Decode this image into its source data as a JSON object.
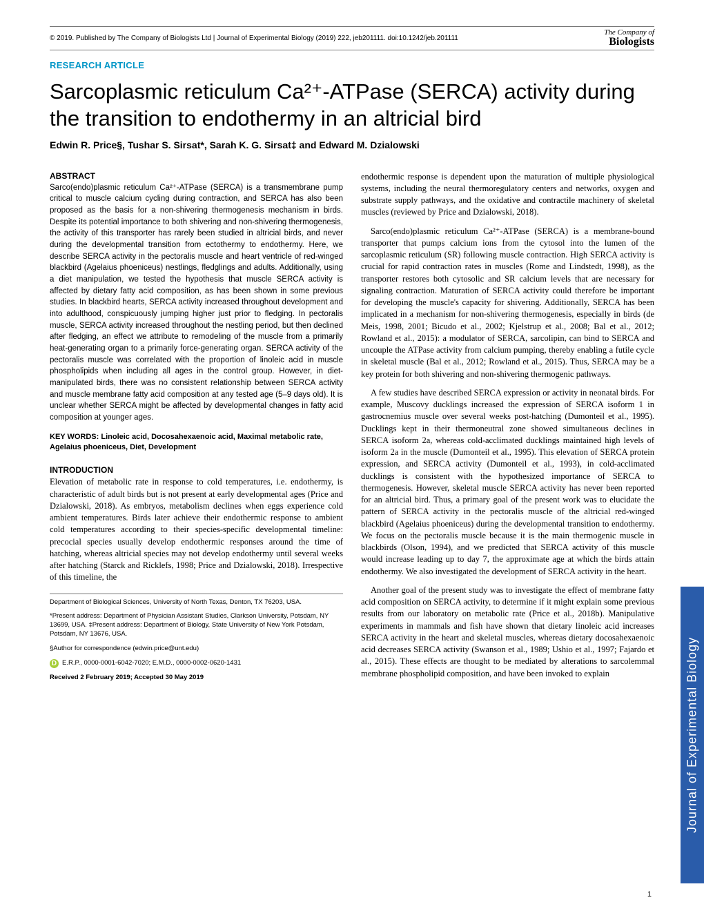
{
  "header": {
    "copyright": "© 2019. Published by The Company of Biologists Ltd | Journal of Experimental Biology (2019) 222, jeb201111. doi:10.1242/jeb.201111",
    "logo_top": "The Company of",
    "logo_bottom": "Biologists"
  },
  "section_label": "RESEARCH ARTICLE",
  "title": "Sarcoplasmic reticulum Ca²⁺-ATPase (SERCA) activity during the transition to endothermy in an altricial bird",
  "authors": "Edwin R. Price§, Tushar S. Sirsat*, Sarah K. G. Sirsat‡ and Edward M. Dzialowski",
  "abstract": {
    "heading": "ABSTRACT",
    "text": "Sarco(endo)plasmic reticulum Ca²⁺-ATPase (SERCA) is a transmembrane pump critical to muscle calcium cycling during contraction, and SERCA has also been proposed as the basis for a non-shivering thermogenesis mechanism in birds. Despite its potential importance to both shivering and non-shivering thermogenesis, the activity of this transporter has rarely been studied in altricial birds, and never during the developmental transition from ectothermy to endothermy. Here, we describe SERCA activity in the pectoralis muscle and heart ventricle of red-winged blackbird (Agelaius phoeniceus) nestlings, fledglings and adults. Additionally, using a diet manipulation, we tested the hypothesis that muscle SERCA activity is affected by dietary fatty acid composition, as has been shown in some previous studies. In blackbird hearts, SERCA activity increased throughout development and into adulthood, conspicuously jumping higher just prior to fledging. In pectoralis muscle, SERCA activity increased throughout the nestling period, but then declined after fledging, an effect we attribute to remodeling of the muscle from a primarily heat-generating organ to a primarily force-generating organ. SERCA activity of the pectoralis muscle was correlated with the proportion of linoleic acid in muscle phospholipids when including all ages in the control group. However, in diet-manipulated birds, there was no consistent relationship between SERCA activity and muscle membrane fatty acid composition at any tested age (5–9 days old). It is unclear whether SERCA might be affected by developmental changes in fatty acid composition at younger ages."
  },
  "keywords": "KEY WORDS: Linoleic acid, Docosahexaenoic acid, Maximal metabolic rate, Agelaius phoeniceus, Diet, Development",
  "intro": {
    "heading": "INTRODUCTION",
    "p1": "Elevation of metabolic rate in response to cold temperatures, i.e. endothermy, is characteristic of adult birds but is not present at early developmental ages (Price and Dzialowski, 2018). As embryos, metabolism declines when eggs experience cold ambient temperatures. Birds later achieve their endothermic response to ambient cold temperatures according to their species-specific developmental timeline: precocial species usually develop endothermic responses around the time of hatching, whereas altricial species may not develop endothermy until several weeks after hatching (Starck and Ricklefs, 1998; Price and Dzialowski, 2018). Irrespective of this timeline, the"
  },
  "col2": {
    "p1": "endothermic response is dependent upon the maturation of multiple physiological systems, including the neural thermoregulatory centers and networks, oxygen and substrate supply pathways, and the oxidative and contractile machinery of skeletal muscles (reviewed by Price and Dzialowski, 2018).",
    "p2": "Sarco(endo)plasmic reticulum Ca²⁺-ATPase (SERCA) is a membrane-bound transporter that pumps calcium ions from the cytosol into the lumen of the sarcoplasmic reticulum (SR) following muscle contraction. High SERCA activity is crucial for rapid contraction rates in muscles (Rome and Lindstedt, 1998), as the transporter restores both cytosolic and SR calcium levels that are necessary for signaling contraction. Maturation of SERCA activity could therefore be important for developing the muscle's capacity for shivering. Additionally, SERCA has been implicated in a mechanism for non-shivering thermogenesis, especially in birds (de Meis, 1998, 2001; Bicudo et al., 2002; Kjelstrup et al., 2008; Bal et al., 2012; Rowland et al., 2015): a modulator of SERCA, sarcolipin, can bind to SERCA and uncouple the ATPase activity from calcium pumping, thereby enabling a futile cycle in skeletal muscle (Bal et al., 2012; Rowland et al., 2015). Thus, SERCA may be a key protein for both shivering and non-shivering thermogenic pathways.",
    "p3": "A few studies have described SERCA expression or activity in neonatal birds. For example, Muscovy ducklings increased the expression of SERCA isoform 1 in gastrocnemius muscle over several weeks post-hatching (Dumonteil et al., 1995). Ducklings kept in their thermoneutral zone showed simultaneous declines in SERCA isoform 2a, whereas cold-acclimated ducklings maintained high levels of isoform 2a in the muscle (Dumonteil et al., 1995). This elevation of SERCA protein expression, and SERCA activity (Dumonteil et al., 1993), in cold-acclimated ducklings is consistent with the hypothesized importance of SERCA to thermogenesis. However, skeletal muscle SERCA activity has never been reported for an altricial bird. Thus, a primary goal of the present work was to elucidate the pattern of SERCA activity in the pectoralis muscle of the altricial red-winged blackbird (Agelaius phoeniceus) during the developmental transition to endothermy. We focus on the pectoralis muscle because it is the main thermogenic muscle in blackbirds (Olson, 1994), and we predicted that SERCA activity of this muscle would increase leading up to day 7, the approximate age at which the birds attain endothermy. We also investigated the development of SERCA activity in the heart.",
    "p4": "Another goal of the present study was to investigate the effect of membrane fatty acid composition on SERCA activity, to determine if it might explain some previous results from our laboratory on metabolic rate (Price et al., 2018b). Manipulative experiments in mammals and fish have shown that dietary linoleic acid increases SERCA activity in the heart and skeletal muscles, whereas dietary docosahexaenoic acid decreases SERCA activity (Swanson et al., 1989; Ushio et al., 1997; Fajardo et al., 2015). These effects are thought to be mediated by alterations to sarcolemmal membrane phospholipid composition, and have been invoked to explain"
  },
  "affiliations": {
    "dept": "Department of Biological Sciences, University of North Texas, Denton, TX 76203, USA.",
    "present": "*Present address: Department of Physician Assistant Studies, Clarkson University, Potsdam, NY 13699, USA. ‡Present address: Department of Biology, State University of New York Potsdam, Potsdam, NY 13676, USA.",
    "corr": "§Author for correspondence (edwin.price@unt.edu)",
    "orcid": "E.R.P., 0000-0001-6042-7020; E.M.D., 0000-0002-0620-1431",
    "dates": "Received 2 February 2019; Accepted 30 May 2019"
  },
  "side_tab": "Journal of Experimental Biology",
  "page": "1",
  "colors": {
    "accent": "#0096c7",
    "tab": "#2a5caa",
    "rule": "#757575",
    "orcid": "#a6ce39"
  }
}
